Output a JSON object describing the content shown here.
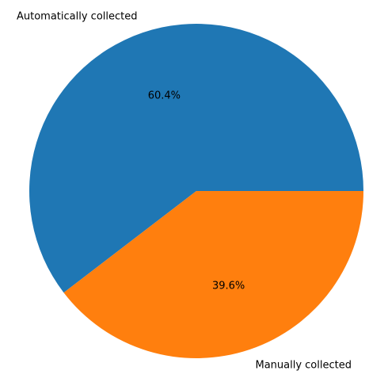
{
  "chart_data": {
    "type": "pie",
    "title": "",
    "slices": [
      {
        "label": "Automatically collected",
        "value": 60.4,
        "pct_label": "60.4%",
        "color": "#1f77b4"
      },
      {
        "label": "Manually collected",
        "value": 39.6,
        "pct_label": "39.6%",
        "color": "#ff7f0e"
      }
    ],
    "start_angle_deg": 0,
    "direction": "counterclockwise",
    "legend": "none"
  }
}
